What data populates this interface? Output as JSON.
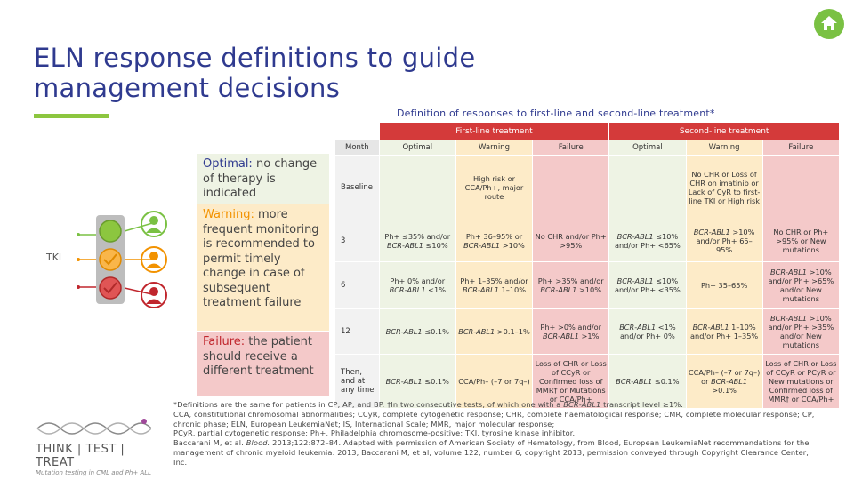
{
  "title_line1": "ELN response definitions to guide",
  "title_line2": "management decisions",
  "subtitle": "Definition of responses to first-line and second-line treatment*",
  "tki_label": "TKI",
  "panels": {
    "optimal_lead": "Optimal:",
    "optimal_rest": " no change of therapy is indicated",
    "warning_lead": "Warning:",
    "warning_rest": " more frequent monitoring is recommended to permit timely change in case of subsequent treatment failure",
    "failure_lead": "Failure:",
    "failure_rest": " the patient should receive a different treatment"
  },
  "table": {
    "group_first": "First-line treatment",
    "group_second": "Second-line treatment",
    "headers": [
      "Month",
      "Optimal",
      "Warning",
      "Failure",
      "Optimal",
      "Warning",
      "Failure"
    ],
    "months": [
      "Baseline",
      "3",
      "6",
      "12",
      "Then, and at any time"
    ],
    "baseline_warning_1": "High risk or CCA/Ph+, major route",
    "baseline_warning_2": "No CHR or Loss of CHR on imatinib or Lack of CyR to first-line TKI or High risk",
    "r3": [
      "Ph+ ≤35% and/or",
      "BCR-ABL1",
      " ≤10%",
      "Ph+ 36–95% or ",
      "BCR-ABL1",
      " >10%",
      "No CHR and/or Ph+ >95%",
      "BCR-ABL1",
      " ≤10% and/or Ph+ <65%",
      "BCR-ABL1",
      " >10% and/or Ph+ 65–95%",
      "No CHR or Ph+ >95% or New mutations"
    ],
    "r6": [
      "Ph+ 0% and/or ",
      "BCR-ABL1",
      " <1%",
      "Ph+ 1–35% and/or ",
      "BCR-ABL1",
      " 1–10%",
      "Ph+ >35% and/or ",
      "BCR-ABL1",
      " >10%",
      "BCR-ABL1",
      " ≤10% and/or Ph+ <35%",
      "Ph+ 35–65%",
      "BCR-ABL1",
      " >10% and/or Ph+ >65% and/or New mutations"
    ],
    "r12": [
      "BCR-ABL1",
      " ≤0.1%",
      "BCR-ABL1",
      " >0.1–1%",
      "Ph+ >0% and/or ",
      "BCR-ABL1",
      " >1%",
      "BCR-ABL1",
      " <1% and/or Ph+ 0%",
      "BCR-ABL1",
      " 1–10% and/or Ph+ 1–35%",
      "BCR-ABL1",
      " >10% and/or Ph+ >35% and/or New mutations"
    ],
    "rany": [
      "BCR-ABL1",
      " ≤0.1%",
      "CCA/Ph– (–7 or 7q–)",
      "Loss of CHR or Loss of CCyR or Confirmed loss of MMR† or Mutations or CCA/Ph+",
      "BCR-ABL1",
      " ≤0.1%",
      "CCA/Ph– (–7 or 7q–) or ",
      "BCR-ABL1",
      " >0.1%",
      "Loss of CHR or Loss of CCyR or PCyR or New mutations or Confirmed loss of MMR† or CCA/Ph+"
    ]
  },
  "footnote": {
    "l1a": "*Definitions are the same for patients in CP, AP, and BP. †In two consecutive tests, of which one with a ",
    "l1b": "BCR-ABL1",
    "l1c": " transcript level ≥1%.",
    "l2": "CCA, constitutional chromosomal abnormalities; CCyR, complete cytogenetic response; CHR, complete haematological response; CMR, complete molecular response; CP, chronic phase; ELN, European LeukemiaNet; IS, International Scale; MMR, major molecular response;",
    "l3": "PCyR, partial cytogenetic response; Ph+, Philadelphia chromosome-positive; TKI, tyrosine kinase inhibitor.",
    "l4a": "Baccarani M, et al. ",
    "l4b": "Blood.",
    "l4c": " 2013;122:872–84. Adapted with permission of American Society of Hematology, from Blood, European LeukemiaNet recommendations for the management of chronic myeloid leukemia: 2013, Baccarani M, et al, volume 122, number 6, copyright 2013; permission conveyed through Copyright Clearance Center, Inc."
  },
  "logo": {
    "main": "THINK | TEST | TREAT",
    "sub": "Mutation testing in CML and Ph+ ALL"
  },
  "colors": {
    "title": "#2f3a8f",
    "accent_green": "#8cc63f",
    "header_red": "#d43a3a",
    "optimal_bg": "#eef3e4",
    "warning_bg": "#fdebc8",
    "failure_bg": "#f4c9c9"
  },
  "icons": [
    "home-icon",
    "traffic-light-icon",
    "person-icon",
    "checkmark-icon"
  ]
}
